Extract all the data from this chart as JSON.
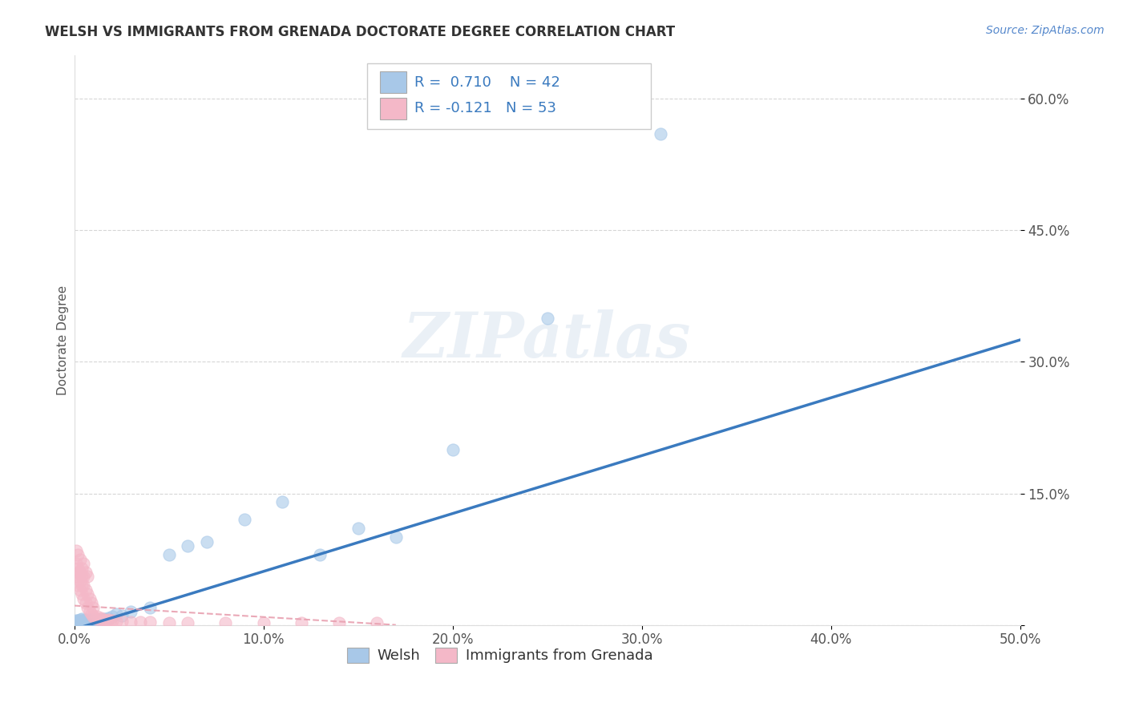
{
  "title": "WELSH VS IMMIGRANTS FROM GRENADA DOCTORATE DEGREE CORRELATION CHART",
  "source": "Source: ZipAtlas.com",
  "ylabel": "Doctorate Degree",
  "xlim": [
    0.0,
    0.5
  ],
  "ylim": [
    0.0,
    0.65
  ],
  "xticks": [
    0.0,
    0.1,
    0.2,
    0.3,
    0.4,
    0.5
  ],
  "yticks": [
    0.0,
    0.15,
    0.3,
    0.45,
    0.6
  ],
  "ytick_labels": [
    "",
    "15.0%",
    "30.0%",
    "45.0%",
    "60.0%"
  ],
  "xtick_labels": [
    "0.0%",
    "10.0%",
    "20.0%",
    "30.0%",
    "40.0%",
    "50.0%"
  ],
  "watermark": "ZIPatlas",
  "color_welsh": "#a8c8e8",
  "color_grenada": "#f4b8c8",
  "trendline_welsh_color": "#3a7abf",
  "trendline_grenada_color": "#e8a0b0",
  "welsh_x": [
    0.001,
    0.002,
    0.002,
    0.003,
    0.003,
    0.004,
    0.004,
    0.005,
    0.005,
    0.006,
    0.006,
    0.007,
    0.007,
    0.008,
    0.008,
    0.009,
    0.01,
    0.01,
    0.011,
    0.012,
    0.013,
    0.014,
    0.015,
    0.016,
    0.017,
    0.018,
    0.02,
    0.022,
    0.025,
    0.03,
    0.04,
    0.05,
    0.06,
    0.07,
    0.09,
    0.11,
    0.13,
    0.15,
    0.17,
    0.2,
    0.25,
    0.31
  ],
  "welsh_y": [
    0.005,
    0.003,
    0.005,
    0.004,
    0.006,
    0.003,
    0.007,
    0.004,
    0.005,
    0.003,
    0.006,
    0.004,
    0.005,
    0.003,
    0.006,
    0.004,
    0.004,
    0.006,
    0.005,
    0.004,
    0.005,
    0.006,
    0.005,
    0.007,
    0.005,
    0.008,
    0.01,
    0.012,
    0.011,
    0.015,
    0.02,
    0.08,
    0.09,
    0.095,
    0.12,
    0.14,
    0.08,
    0.11,
    0.1,
    0.2,
    0.35,
    0.56
  ],
  "grenada_x": [
    0.001,
    0.001,
    0.001,
    0.002,
    0.002,
    0.002,
    0.002,
    0.003,
    0.003,
    0.003,
    0.003,
    0.004,
    0.004,
    0.004,
    0.004,
    0.005,
    0.005,
    0.005,
    0.005,
    0.006,
    0.006,
    0.006,
    0.007,
    0.007,
    0.007,
    0.008,
    0.008,
    0.009,
    0.009,
    0.01,
    0.01,
    0.011,
    0.012,
    0.013,
    0.014,
    0.015,
    0.016,
    0.017,
    0.018,
    0.019,
    0.02,
    0.022,
    0.025,
    0.03,
    0.035,
    0.04,
    0.05,
    0.06,
    0.08,
    0.1,
    0.12,
    0.14,
    0.16
  ],
  "grenada_y": [
    0.07,
    0.055,
    0.085,
    0.06,
    0.045,
    0.065,
    0.08,
    0.05,
    0.04,
    0.06,
    0.075,
    0.035,
    0.055,
    0.045,
    0.065,
    0.03,
    0.045,
    0.055,
    0.07,
    0.025,
    0.04,
    0.06,
    0.02,
    0.035,
    0.055,
    0.015,
    0.03,
    0.012,
    0.025,
    0.01,
    0.02,
    0.008,
    0.01,
    0.006,
    0.008,
    0.006,
    0.005,
    0.005,
    0.006,
    0.004,
    0.005,
    0.004,
    0.004,
    0.003,
    0.003,
    0.003,
    0.002,
    0.002,
    0.002,
    0.002,
    0.002,
    0.002,
    0.002
  ],
  "trendline_welsh_x0": 0.0,
  "trendline_welsh_y0": -0.005,
  "trendline_welsh_x1": 0.5,
  "trendline_welsh_y1": 0.325,
  "trendline_grenada_x0": 0.0,
  "trendline_grenada_y0": 0.022,
  "trendline_grenada_x1": 0.17,
  "trendline_grenada_y1": 0.0
}
